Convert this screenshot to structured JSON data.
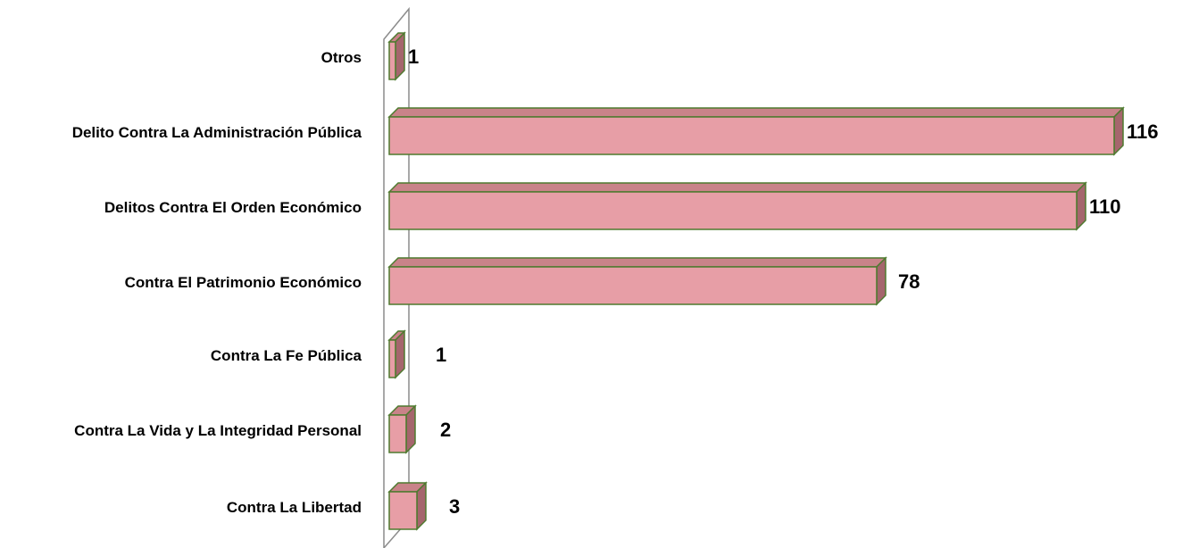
{
  "chart_data": {
    "type": "bar",
    "orientation": "horizontal",
    "three_d": true,
    "categories": [
      "Otros",
      "Delito Contra La Administración Pública",
      "Delitos Contra El Orden Económico",
      "Contra El Patrimonio Económico",
      "Contra La Fe Pública",
      "Contra La Vida y La Integridad Personal",
      "Contra La Libertad"
    ],
    "values": [
      1,
      116,
      110,
      78,
      1,
      2,
      3
    ],
    "data_labels": [
      "1",
      "116",
      "110",
      "78",
      "1",
      "2",
      "3"
    ],
    "xlim": [
      0,
      116
    ],
    "grid": false,
    "legend": "none",
    "colors": {
      "bar_front": "#e79ea6",
      "bar_top": "#c98389",
      "bar_side": "#a5666d",
      "bar_edge": "#4e7a2f",
      "wall": "#8c8c8c"
    }
  }
}
